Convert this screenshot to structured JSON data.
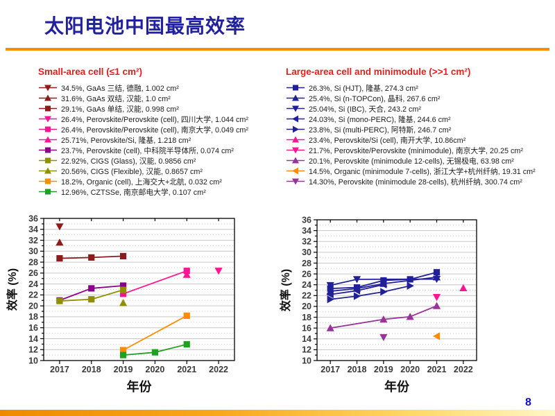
{
  "slide": {
    "title": "太阳电池中国最高效率",
    "page_number": "8",
    "accent_color": "#F58E00",
    "title_color": "#21219F"
  },
  "legends": {
    "small": {
      "header": "Small-area cell  (≤1 cm²)",
      "entries": [
        {
          "label": "34.5%, GaAs 三结, 德融, 1.002 cm²",
          "marker": "triangle-down",
          "color": "#8E1B1B"
        },
        {
          "label": "31.6%, GaAs 双结, 汉能, 1.0 cm²",
          "marker": "triangle-up",
          "color": "#8E1B1B"
        },
        {
          "label": "29.1%, GaAs 单结, 汉能, 0.998 cm²",
          "marker": "square",
          "color": "#8E1B1B"
        },
        {
          "label": "26.4%, Perovskite/Perovskite (cell), 四川大学, 1.044 cm²",
          "marker": "triangle-down",
          "color": "#FF1493"
        },
        {
          "label": "26.4%, Perovskite/Perovskite (cell), 南京大学, 0.049 cm²",
          "marker": "square",
          "color": "#FF1493"
        },
        {
          "label": "25.71%, Perovskite/Si, 隆基, 1.218 cm²",
          "marker": "triangle-up",
          "color": "#FF1493"
        },
        {
          "label": "23.7%, Perovskite (cell), 中科院半导体所,  0.074 cm²",
          "marker": "square",
          "color": "#8B008B"
        },
        {
          "label": "22.92%, CIGS (Glass), 汉能, 0.9856 cm²",
          "marker": "square",
          "color": "#8F8F00"
        },
        {
          "label": "20.56%, CIGS (Flexible), 汉能, 0.8657 cm²",
          "marker": "triangle-up",
          "color": "#8F8F00"
        },
        {
          "label": "18.2%, Organic (cell), 上海交大+北航, 0.032 cm²",
          "marker": "square",
          "color": "#FF8C00"
        },
        {
          "label": "12.96%, CZTSSe, 南京邮电大学, 0.107 cm²",
          "marker": "square",
          "color": "#1FA01F"
        }
      ]
    },
    "large": {
      "header": "Large-area cell and minimodule (>>1 cm²)",
      "entries": [
        {
          "label": "26.3%, Si (HJT), 隆基, 274.3 cm²",
          "marker": "square",
          "color": "#202098"
        },
        {
          "label": "25.4%, Si (n-TOPCon), 晶科, 267.6 cm²",
          "marker": "triangle-up",
          "color": "#202098"
        },
        {
          "label": "25.04%, Si (IBC), 天合, 243.2 cm²",
          "marker": "triangle-down",
          "color": "#202098"
        },
        {
          "label": "24.03%, Si (mono-PERC), 隆基, 244.6 cm²",
          "marker": "triangle-left",
          "color": "#202098"
        },
        {
          "label": "23.8%, Si (multi-PERC), 阿特斯, 246.7 cm²",
          "marker": "triangle-right",
          "color": "#202098"
        },
        {
          "label": "23.4%, Perovskite/Si (cell), 南开大学, 10.86cm²",
          "marker": "triangle-up",
          "color": "#FF1493"
        },
        {
          "label": "21.7%, Perovskite/Perovskite (minimodule), 南京大学, 20.25 cm²",
          "marker": "triangle-down",
          "color": "#FF1493"
        },
        {
          "label": "20.1%, Perovskite (minimodule 12-cells), 无锡极电, 63.98 cm²",
          "marker": "triangle-up",
          "color": "#993399"
        },
        {
          "label": "14.5%, Organic (minimodule 7-cells), 浙江大学+杭州纤纳, 19.31 cm²",
          "marker": "triangle-left",
          "color": "#FF8C00"
        },
        {
          "label": "14.30%, Perovskite (minimodule 28-cells), 杭州纤纳, 300.74 cm²",
          "marker": "triangle-down",
          "color": "#993399"
        }
      ]
    }
  },
  "chart_data": [
    {
      "type": "line",
      "title": "Small-area cell (≤1 cm²)",
      "xlabel": "年份",
      "ylabel": "效率 (%)",
      "x": [
        2017,
        2018,
        2019,
        2020,
        2021,
        2022
      ],
      "ylim": [
        10,
        36
      ],
      "ytick_step": 2,
      "grid": {
        "major": "solid",
        "minor": "dotted"
      },
      "legend_position": "above",
      "series": [
        {
          "name": "GaAs 三结, 德融",
          "marker": "triangle-down",
          "color": "#8E1B1B",
          "points": [
            [
              2017,
              34.5
            ]
          ]
        },
        {
          "name": "GaAs 双结, 汉能",
          "marker": "triangle-up",
          "color": "#8E1B1B",
          "points": [
            [
              2017,
              31.6
            ]
          ]
        },
        {
          "name": "GaAs 单结, 汉能",
          "marker": "square",
          "color": "#8E1B1B",
          "points": [
            [
              2017,
              28.7
            ],
            [
              2018,
              28.85
            ],
            [
              2019,
              29.1
            ]
          ]
        },
        {
          "name": "Perovskite/Perovskite (cell), 四川大学",
          "marker": "triangle-down",
          "color": "#FF1493",
          "points": [
            [
              2022,
              26.4
            ]
          ]
        },
        {
          "name": "Perovskite/Perovskite (cell), 南京大学",
          "marker": "square",
          "color": "#FF1493",
          "points": [
            [
              2019,
              22.2
            ],
            [
              2021,
              26.4
            ]
          ]
        },
        {
          "name": "Perovskite/Si, 隆基",
          "marker": "triangle-up",
          "color": "#FF1493",
          "points": [
            [
              2021,
              25.71
            ]
          ]
        },
        {
          "name": "Perovskite (cell), 中科院半导体所",
          "marker": "square",
          "color": "#8B008B",
          "points": [
            [
              2017,
              21.0
            ],
            [
              2018,
              23.2
            ],
            [
              2019,
              23.7
            ]
          ]
        },
        {
          "name": "CIGS (Glass), 汉能",
          "marker": "square",
          "color": "#8F8F00",
          "points": [
            [
              2017,
              20.9
            ],
            [
              2018,
              21.2
            ],
            [
              2019,
              22.92
            ]
          ]
        },
        {
          "name": "CIGS (Flexible), 汉能",
          "marker": "triangle-up",
          "color": "#8F8F00",
          "points": [
            [
              2019,
              20.56
            ]
          ]
        },
        {
          "name": "Organic (cell), 上海交大+北航",
          "marker": "square",
          "color": "#FF8C00",
          "points": [
            [
              2019,
              11.9
            ],
            [
              2021,
              18.2
            ]
          ]
        },
        {
          "name": "CZTSSe, 南京邮电大学",
          "marker": "square",
          "color": "#1FA01F",
          "points": [
            [
              2019,
              11.0
            ],
            [
              2020,
              11.5
            ],
            [
              2021,
              12.96
            ]
          ]
        }
      ]
    },
    {
      "type": "line",
      "title": "Large-area cell and minimodule (>>1 cm²)",
      "xlabel": "年份",
      "ylabel": "效率 (%)",
      "x": [
        2017,
        2018,
        2019,
        2020,
        2021,
        2022
      ],
      "ylim": [
        10,
        36
      ],
      "ytick_step": 2,
      "grid": {
        "major": "solid",
        "minor": "dotted"
      },
      "legend_position": "above",
      "series": [
        {
          "name": "Si (HJT), 隆基",
          "marker": "square",
          "color": "#202098",
          "points": [
            [
              2017,
              23.3
            ],
            [
              2018,
              23.5
            ],
            [
              2019,
              24.8
            ],
            [
              2020,
              25.0
            ],
            [
              2021,
              26.3
            ]
          ]
        },
        {
          "name": "Si (n-TOPCon), 晶科",
          "marker": "triangle-up",
          "color": "#202098",
          "points": [
            [
              2017,
              22.8
            ],
            [
              2018,
              23.3
            ],
            [
              2019,
              24.2
            ],
            [
              2021,
              25.4
            ]
          ]
        },
        {
          "name": "Si (IBC), 天合",
          "marker": "triangle-down",
          "color": "#202098",
          "points": [
            [
              2017,
              23.9
            ],
            [
              2018,
              25.0
            ],
            [
              2021,
              25.04
            ]
          ]
        },
        {
          "name": "Si (mono-PERC), 隆基",
          "marker": "triangle-left",
          "color": "#202098",
          "points": [
            [
              2017,
              22.2
            ],
            [
              2018,
              22.9
            ],
            [
              2019,
              24.03
            ]
          ]
        },
        {
          "name": "Si (multi-PERC), 阿特斯",
          "marker": "triangle-right",
          "color": "#202098",
          "points": [
            [
              2017,
              21.3
            ],
            [
              2018,
              21.9
            ],
            [
              2019,
              22.7
            ],
            [
              2020,
              23.8
            ]
          ]
        },
        {
          "name": "Perovskite/Si (cell), 南开大学",
          "marker": "triangle-up",
          "color": "#FF1493",
          "points": [
            [
              2022,
              23.4
            ]
          ]
        },
        {
          "name": "Perovskite/Perovskite (minimodule), 南京大学",
          "marker": "triangle-down",
          "color": "#FF1493",
          "points": [
            [
              2021,
              21.7
            ]
          ]
        },
        {
          "name": "Perovskite (minimodule 12-cells), 无锡极电",
          "marker": "triangle-up",
          "color": "#993399",
          "points": [
            [
              2017,
              16.0
            ],
            [
              2019,
              17.6
            ],
            [
              2020,
              18.1
            ],
            [
              2021,
              20.1
            ]
          ]
        },
        {
          "name": "Organic (minimodule 7-cells), 浙江大学+杭州纤纳",
          "marker": "triangle-left",
          "color": "#FF8C00",
          "points": [
            [
              2021,
              14.5
            ]
          ]
        },
        {
          "name": "Perovskite (minimodule 28-cells), 杭州纤纳",
          "marker": "triangle-down",
          "color": "#993399",
          "points": [
            [
              2019,
              14.3
            ]
          ]
        }
      ]
    }
  ]
}
